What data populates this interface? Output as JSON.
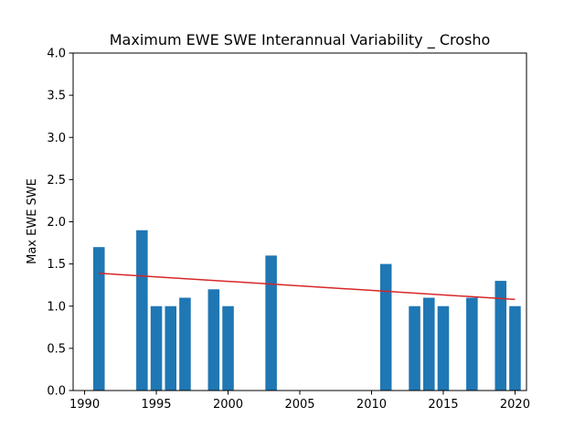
{
  "chart_data": {
    "type": "bar",
    "title": "Maximum EWE SWE Interannual Variability _ Crosho",
    "xlabel": "",
    "ylabel": "Max EWE SWE",
    "xlim": [
      1989.2,
      2020.8
    ],
    "ylim": [
      0,
      4.0
    ],
    "xticks": [
      1990,
      1995,
      2000,
      2005,
      2010,
      2015,
      2020
    ],
    "yticks": [
      0.0,
      0.5,
      1.0,
      1.5,
      2.0,
      2.5,
      3.0,
      3.5,
      4.0
    ],
    "ytick_labels": [
      "0.0",
      "0.5",
      "1.0",
      "1.5",
      "2.0",
      "2.5",
      "3.0",
      "3.5",
      "4.0"
    ],
    "grid": false,
    "bar_color": "#1f77b4",
    "trend_color": "#d62728",
    "bars": [
      {
        "x": 1991,
        "value": 1.7
      },
      {
        "x": 1994,
        "value": 1.9
      },
      {
        "x": 1995,
        "value": 1.0
      },
      {
        "x": 1996,
        "value": 1.0
      },
      {
        "x": 1997,
        "value": 1.1
      },
      {
        "x": 1999,
        "value": 1.2
      },
      {
        "x": 2000,
        "value": 1.0
      },
      {
        "x": 2003,
        "value": 1.6
      },
      {
        "x": 2011,
        "value": 1.5
      },
      {
        "x": 2013,
        "value": 1.0
      },
      {
        "x": 2014,
        "value": 1.1
      },
      {
        "x": 2015,
        "value": 1.0
      },
      {
        "x": 2017,
        "value": 1.1
      },
      {
        "x": 2019,
        "value": 1.3
      },
      {
        "x": 2020,
        "value": 1.0
      }
    ],
    "trend_line": {
      "x": [
        1991,
        2020
      ],
      "y": [
        1.39,
        1.08
      ]
    }
  }
}
